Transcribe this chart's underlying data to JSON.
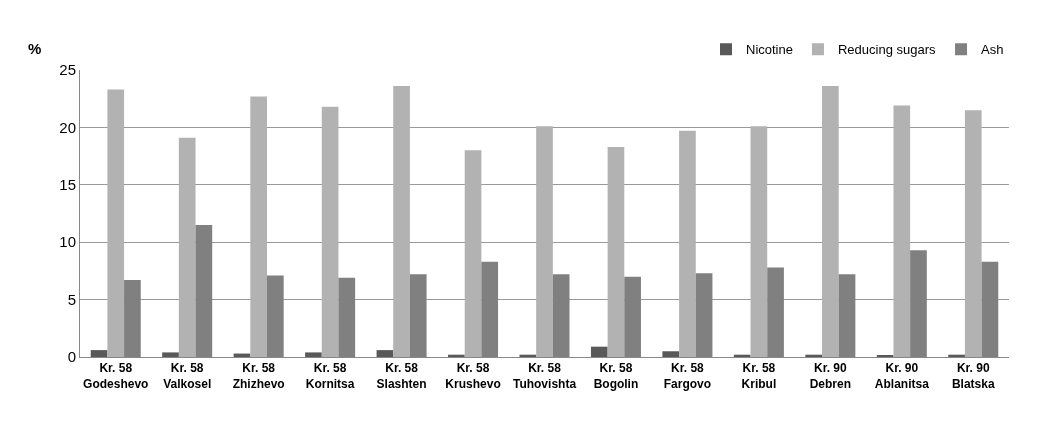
{
  "chart_data": {
    "type": "bar",
    "ylabel": "%",
    "categories": [
      "Kr. 58\nGodeshevo",
      "Kr. 58\nValkosel",
      "Kr. 58\nZhizhevo",
      "Kr. 58\nKornitsa",
      "Kr. 58\nSlashten",
      "Kr. 58\nKrushevo",
      "Kr. 58\nTuhovishta",
      "Kr. 58\nBogolin",
      "Kr. 58\nFargovo",
      "Kr. 58\nKribul",
      "Kr. 90\nDebren",
      "Kr. 90\nAblanitsa",
      "Kr. 90\nBlatska"
    ],
    "series": [
      {
        "name": "Nicotine",
        "color": "#595959",
        "values": [
          0.6,
          0.4,
          0.3,
          0.4,
          0.6,
          0.2,
          0.2,
          0.9,
          0.5,
          0.2,
          0.2,
          0.1,
          0.2
        ]
      },
      {
        "name": "Reducing sugars",
        "color": "#b2b2b2",
        "values": [
          23.3,
          19.1,
          22.7,
          21.8,
          23.6,
          18.0,
          20.1,
          18.3,
          19.7,
          20.1,
          23.6,
          21.9,
          21.5
        ]
      },
      {
        "name": "Ash",
        "color": "#808080",
        "values": [
          6.7,
          11.5,
          7.1,
          6.9,
          7.2,
          8.3,
          7.2,
          7.0,
          7.3,
          7.8,
          7.2,
          9.3,
          8.3
        ]
      }
    ],
    "ylim": [
      0,
      25
    ],
    "yticks": [
      0,
      5,
      10,
      15,
      20,
      25
    ],
    "grid": "y",
    "legend": "top right"
  }
}
